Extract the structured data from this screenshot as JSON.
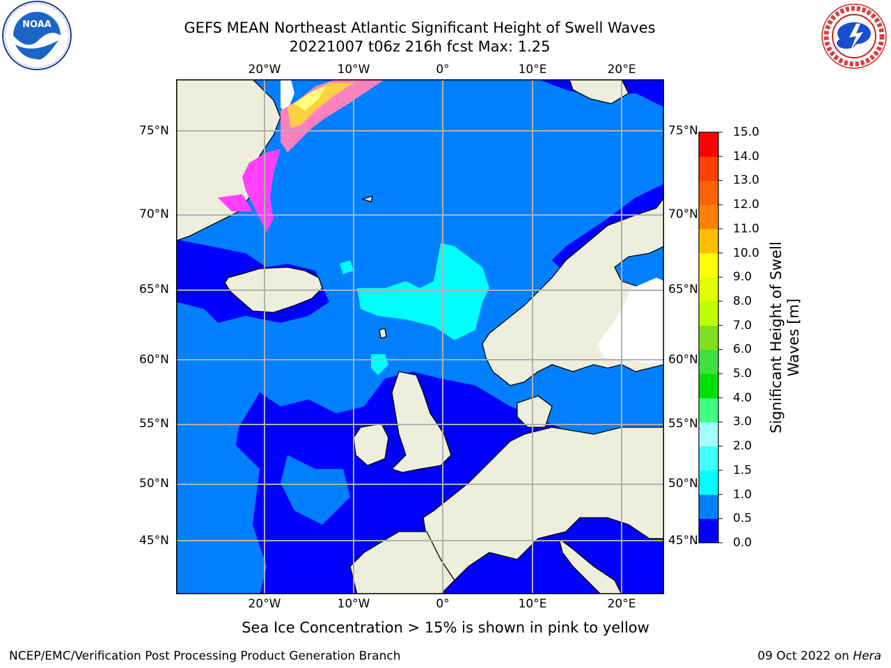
{
  "title": {
    "line1": "GEFS MEAN Northeast Atlantic Significant Height of Swell Waves",
    "line2": "20221007 t06z 216h fcst   Max: 1.25"
  },
  "logos": {
    "left": {
      "icon": "noaa-logo",
      "text": "NOAA",
      "ring_text": "NATIONAL OCEANIC AND ATMOSPHERIC ADMINISTRATION · U.S. DEPARTMENT OF COMMERCE"
    },
    "right": {
      "icon": "nws-logo",
      "ring_text": "NATIONAL WEATHER SERVICE"
    }
  },
  "map": {
    "lon_labels": [
      "20°W",
      "10°W",
      "0°",
      "10°E",
      "20°E"
    ],
    "lat_labels": [
      "75°N",
      "70°N",
      "65°N",
      "60°N",
      "55°N",
      "50°N",
      "45°N"
    ],
    "colors": {
      "ocean_low": "#0000ff",
      "ocean_mid": "#0080ff",
      "ocean_high": "#00ffff",
      "land": "#eeeedc",
      "sea_ice": [
        "#ff40ff",
        "#ff80c0",
        "#ffd040",
        "#ffff80"
      ],
      "grid": "#b0b0b0"
    }
  },
  "colorbar": {
    "title": "Significant Height of Swell Waves [m]",
    "ticks": [
      "0.0",
      "0.5",
      "1.0",
      "1.5",
      "2.0",
      "3.0",
      "4.0",
      "5.0",
      "6.0",
      "7.0",
      "8.0",
      "9.0",
      "10.0",
      "11.0",
      "12.0",
      "13.0",
      "14.0",
      "15.0"
    ],
    "colors": [
      "#0000ff",
      "#0080ff",
      "#00ffff",
      "#40ffff",
      "#a0ffff",
      "#40ff80",
      "#00e000",
      "#40e040",
      "#80e020",
      "#c0ff00",
      "#e0ff00",
      "#ffff00",
      "#ffc000",
      "#ff8000",
      "#ff6000",
      "#ff4000",
      "#ff0000"
    ]
  },
  "footnote": "Sea Ice Concentration > 15% is shown in pink to yellow",
  "credits": {
    "left": "NCEP/EMC/Verification Post Processing Product Generation Branch",
    "right_date": "09 Oct 2022 on ",
    "right_host": "Hera"
  }
}
